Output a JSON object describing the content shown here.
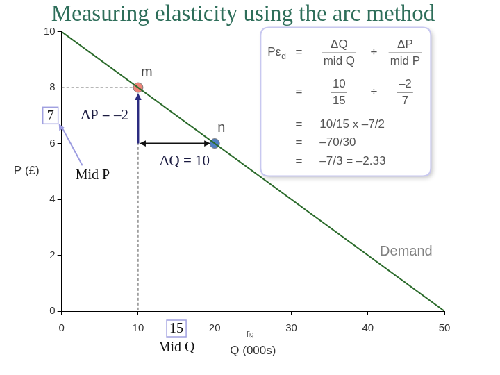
{
  "chart_data": {
    "type": "line",
    "title": "Measuring elasticity using the arc method",
    "x_label": "Q (000s)",
    "y_label": "P (£)",
    "series": [
      {
        "name": "Demand",
        "color": "#2b6b2b",
        "x": [
          0,
          50
        ],
        "values": [
          10,
          0
        ]
      }
    ],
    "points": [
      {
        "name": "m",
        "x": 10,
        "y": 8,
        "color": "#f0857a"
      },
      {
        "name": "n",
        "x": 20,
        "y": 6,
        "color": "#4f7fc2"
      }
    ],
    "xlim": [
      0,
      50
    ],
    "xticks": [
      0,
      10,
      20,
      30,
      40,
      50
    ],
    "ylim": [
      0,
      10
    ],
    "yticks": [
      0,
      2,
      4,
      6,
      8,
      10
    ],
    "grid": false,
    "mid_p": {
      "label": "Mid P",
      "value": 7
    },
    "mid_q": {
      "label": "Mid Q",
      "value": 15
    },
    "delta_p": {
      "label": "ΔP = –2",
      "value": -2
    },
    "delta_q": {
      "label": "ΔQ = 10",
      "value": 10
    },
    "note": "fig",
    "formula": {
      "lhs": "Pε",
      "lhs_sub": "d",
      "eq": "=",
      "rows": [
        {
          "fractions": [
            [
              "ΔQ",
              "mid Q"
            ],
            [
              "ΔP",
              "mid P"
            ]
          ],
          "op": "÷"
        },
        {
          "fractions": [
            [
              "10",
              "15"
            ],
            [
              "–2",
              "7"
            ]
          ],
          "op": "÷"
        },
        {
          "text": "10/15 x –7/2"
        },
        {
          "text": "–70/30"
        },
        {
          "text": "–7/3 = –2.33"
        }
      ]
    }
  }
}
